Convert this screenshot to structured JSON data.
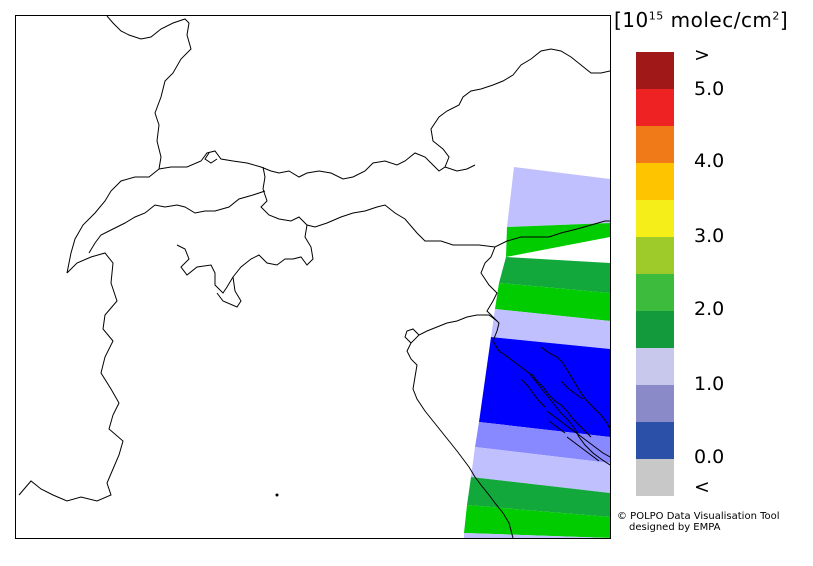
{
  "legend": {
    "title_prefix": "[10",
    "title_exp": "15",
    "title_unit": " molec/cm",
    "title_sq": "2",
    "title_suffix": "]",
    "labels": [
      ">",
      "5.0",
      "4.0",
      "3.0",
      "2.0",
      "1.0",
      "0.0",
      "<"
    ],
    "colors": [
      "#a01818",
      "#ee2222",
      "#f07a18",
      "#ffc400",
      "#f5ee18",
      "#9ecb2a",
      "#3cbb3c",
      "#139a3c",
      "#c8c8ec",
      "#8a8ac8",
      "#2a50a8",
      "#c8c8c8"
    ]
  },
  "credit": {
    "line1": "© POLPO Data Visualisation Tool",
    "line2": "designed by EMPA"
  },
  "swath_colors": {
    "light_lavender": "#c0c0ff",
    "medium_green": "#13a83c",
    "bright_green": "#00cc00",
    "blue": "#0000ff",
    "periwinkle": "#8888ff"
  }
}
